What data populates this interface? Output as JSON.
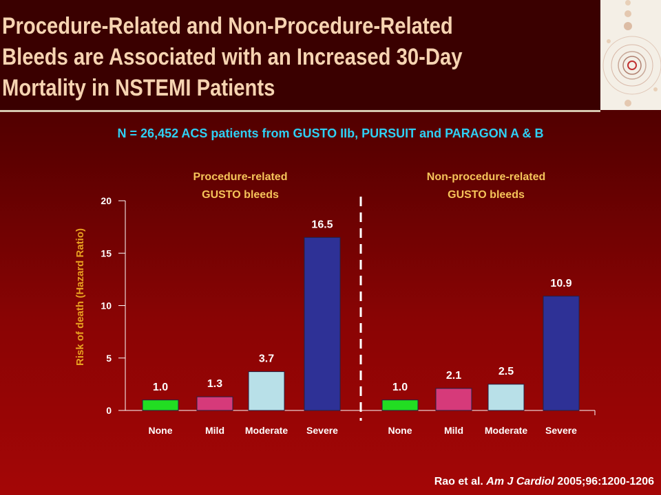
{
  "slide": {
    "title": "Procedure-Related and Non-Procedure-Related Bleeds are Associated with an Increased 30-Day Mortality in NSTEMI Patients",
    "subtitle": "N = 26,452 ACS patients from GUSTO IIb, PURSUIT and PARAGON A & B",
    "citation_prefix": "Rao et al. ",
    "citation_journal": "Am J Cardiol",
    "citation_suffix": " 2005;96:1200-1206"
  },
  "colors": {
    "title_text": "#f6d3b1",
    "subtitle_text": "#2fd0f4",
    "group_title_text": "#f6c45a",
    "ylabel_text": "#e8a020"
  },
  "chart_data": {
    "type": "bar",
    "ylabel": "Risk of death (Hazard Ratio)",
    "ylim": [
      0,
      20
    ],
    "yticks": [
      0,
      5,
      10,
      15,
      20
    ],
    "grid": false,
    "groups": [
      {
        "title_line1": "Procedure-related",
        "title_line2": "GUSTO bleeds",
        "categories": [
          "None",
          "Mild",
          "Moderate",
          "Severe"
        ],
        "values": [
          1.0,
          1.3,
          3.7,
          16.5
        ],
        "labels": [
          "1.0",
          "1.3",
          "3.7",
          "16.5"
        ],
        "colors": [
          "#22dd22",
          "#d63a7a",
          "#b8e0e8",
          "#2e3196"
        ]
      },
      {
        "title_line1": "Non-procedure-related",
        "title_line2": "GUSTO bleeds",
        "categories": [
          "None",
          "Mild",
          "Moderate",
          "Severe"
        ],
        "values": [
          1.0,
          2.1,
          2.5,
          10.9
        ],
        "labels": [
          "1.0",
          "2.1",
          "2.5",
          "10.9"
        ],
        "colors": [
          "#22dd22",
          "#d63a7a",
          "#b8e0e8",
          "#2e3196"
        ]
      }
    ]
  }
}
